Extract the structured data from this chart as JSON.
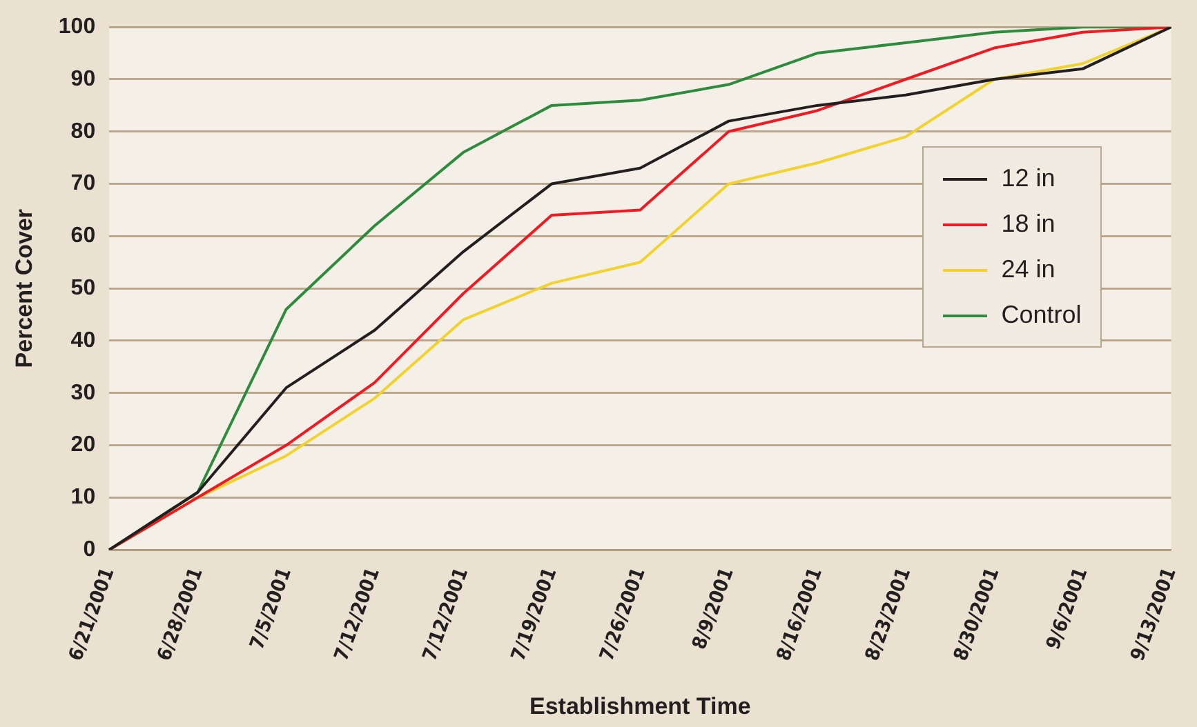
{
  "chart_data": {
    "type": "line",
    "xlabel": "Establishment Time",
    "ylabel": "Percent Cover",
    "categories": [
      "6/21/2001",
      "6/28/2001",
      "7/5/2001",
      "7/12/2001",
      "7/12/2001",
      "7/19/2001",
      "7/26/2001",
      "8/9/2001",
      "8/16/2001",
      "8/23/2001",
      "8/30/2001",
      "9/6/2001",
      "9/13/2001"
    ],
    "series": [
      {
        "name": "12 in",
        "color": "#231f20",
        "values": [
          0,
          11,
          31,
          42,
          57,
          70,
          73,
          82,
          85,
          87,
          90,
          92,
          100
        ]
      },
      {
        "name": "18 in",
        "color": "#ed1c24",
        "values": [
          0,
          10,
          20,
          32,
          49,
          64,
          65,
          80,
          84,
          90,
          96,
          99,
          100
        ]
      },
      {
        "name": "24 in",
        "color": "#f2d22e",
        "values": [
          0,
          10,
          18,
          29,
          44,
          51,
          55,
          70,
          74,
          79,
          90,
          93,
          100
        ]
      },
      {
        "name": "Control",
        "color": "#2e8b3e",
        "values": [
          0,
          11,
          46,
          62,
          76,
          85,
          86,
          89,
          95,
          97,
          99,
          100,
          100
        ]
      }
    ],
    "ylim": [
      0,
      100
    ],
    "yticks": [
      0,
      10,
      20,
      30,
      40,
      50,
      60,
      70,
      80,
      90,
      100
    ],
    "grid": "y",
    "legend": "right",
    "marker": "none",
    "line_style": "solid"
  }
}
